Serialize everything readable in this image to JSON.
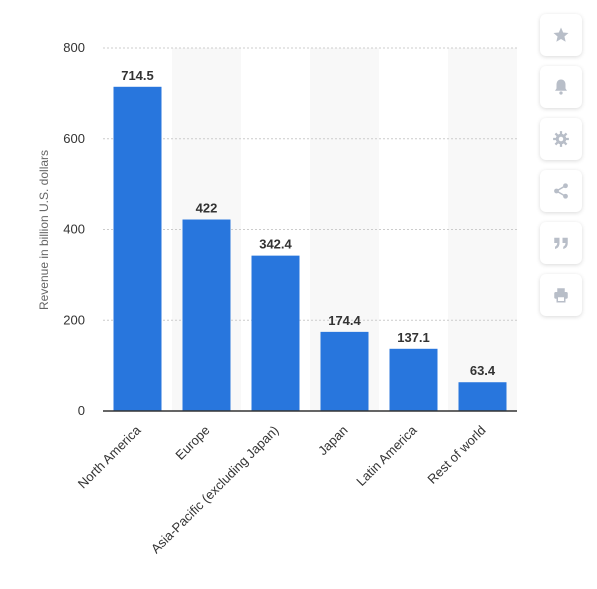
{
  "chart_data": {
    "type": "bar",
    "categories": [
      "North America",
      "Europe",
      "Asia-Pacific (excluding Japan)",
      "Japan",
      "Latin America",
      "Rest of world"
    ],
    "values": [
      714.5,
      422,
      342.4,
      174.4,
      137.1,
      63.4
    ],
    "value_labels": [
      "714.5",
      "422",
      "342.4",
      "174.4",
      "137.1",
      "63.4"
    ],
    "ylabel": "Revenue in billion U.S. dollars",
    "ylim": [
      0,
      800
    ],
    "yticks": [
      "0",
      "200",
      "400",
      "600",
      "800"
    ],
    "bar_color": "#2876dd",
    "grid": true,
    "alternating_column_shading": true
  },
  "toolbar": {
    "icons": [
      "star-icon",
      "bell-icon",
      "gear-icon",
      "share-icon",
      "quote-icon",
      "print-icon"
    ],
    "icon_color": "#b8bec8"
  }
}
